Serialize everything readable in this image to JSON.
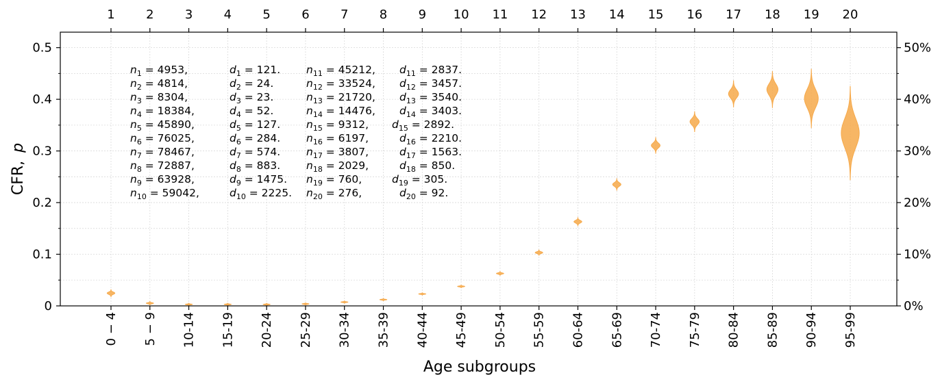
{
  "chart_data": {
    "type": "violin",
    "xlabel": "Age subgroups",
    "ylabel": "CFR,",
    "ylabel_symbol": "p",
    "ylim": [
      0,
      0.53
    ],
    "yticks": [
      "0",
      "0.1",
      "0.2",
      "0.3",
      "0.4",
      "0.5"
    ],
    "y2ticks": [
      "0%",
      "10%",
      "20%",
      "30%",
      "40%",
      "50%"
    ],
    "top_ticks": [
      "1",
      "2",
      "3",
      "4",
      "5",
      "6",
      "7",
      "8",
      "9",
      "10",
      "11",
      "12",
      "13",
      "14",
      "15",
      "16",
      "17",
      "18",
      "19",
      "20"
    ],
    "categories": [
      "0 − 4",
      "5 − 9",
      "10-14",
      "15-19",
      "20-24",
      "25-29",
      "30-34",
      "35-39",
      "40-44",
      "45-49",
      "50-54",
      "55-59",
      "60-64",
      "65-69",
      "70-74",
      "75-79",
      "80-84",
      "85-89",
      "90-94",
      "95-99"
    ],
    "color": "#f6a94a",
    "grid": true,
    "n": [
      4953,
      4814,
      8304,
      18384,
      45890,
      76025,
      78467,
      72887,
      63928,
      59042,
      45212,
      33524,
      21720,
      14476,
      9312,
      6197,
      3807,
      2029,
      760,
      276
    ],
    "d": [
      121,
      24,
      23,
      52,
      127,
      284,
      574,
      883,
      1475,
      2225,
      2837,
      3457,
      3540,
      3403,
      2892,
      2210,
      1563,
      850,
      305,
      92
    ],
    "annotations": {
      "left": [
        {
          "i": "1",
          "n": "4953,",
          "d": "121."
        },
        {
          "i": "2",
          "n": "4814,",
          "d": "24."
        },
        {
          "i": "3",
          "n": "8304,",
          "d": "23."
        },
        {
          "i": "4",
          "n": "18384,",
          "d": "52."
        },
        {
          "i": "5",
          "n": "45890,",
          "d": "127."
        },
        {
          "i": "6",
          "n": "76025,",
          "d": "284."
        },
        {
          "i": "7",
          "n": "78467,",
          "d": "574."
        },
        {
          "i": "8",
          "n": "72887,",
          "d": "883."
        },
        {
          "i": "9",
          "n": "63928,",
          "d": "1475."
        },
        {
          "i": "10",
          "n": "59042,",
          "d": "2225."
        }
      ],
      "right": [
        {
          "i": "11",
          "n": "45212,",
          "d": "2837."
        },
        {
          "i": "12",
          "n": "33524,",
          "d": "3457."
        },
        {
          "i": "13",
          "n": "21720,",
          "d": "3540."
        },
        {
          "i": "14",
          "n": "14476,",
          "d": "3403."
        },
        {
          "i": "15",
          "n": "9312,",
          "d": "2892."
        },
        {
          "i": "16",
          "n": "6197,",
          "d": "2210."
        },
        {
          "i": "17",
          "n": "3807,",
          "d": "1563."
        },
        {
          "i": "18",
          "n": "2029,",
          "d": "850."
        },
        {
          "i": "19",
          "n": "760,",
          "d": "305."
        },
        {
          "i": "20",
          "n": "276,",
          "d": "92."
        }
      ]
    }
  }
}
